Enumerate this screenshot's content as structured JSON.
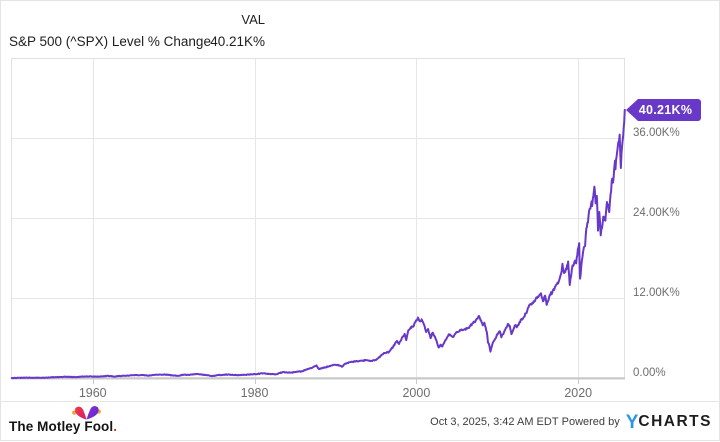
{
  "header": {
    "val_header": "VAL",
    "series_label": "S&P 500 (^SPX) Level % Change",
    "val_value": "40.21K%"
  },
  "chart_data": {
    "type": "line",
    "title": "S&P 500 (^SPX) Level % Change",
    "end_label": "40.21K%",
    "line_color": "#6838c9",
    "grid": true,
    "legend_position": "top-left",
    "y_axis_side": "right",
    "x_range": [
      1949.9,
      2025.78
    ],
    "y_range": [
      0,
      48000
    ],
    "x_ticks": [
      {
        "value": 1960,
        "label": "1960"
      },
      {
        "value": 1980,
        "label": "1980"
      },
      {
        "value": 2000,
        "label": "2000"
      },
      {
        "value": 2020,
        "label": "2020"
      }
    ],
    "y_ticks": [
      {
        "value": 0,
        "label": "0.00%"
      },
      {
        "value": 12000,
        "label": "12.00K%"
      },
      {
        "value": 24000,
        "label": "24.00K%"
      },
      {
        "value": 36000,
        "label": "36.00K%"
      }
    ],
    "series": [
      {
        "name": "S&P 500 (^SPX) Level % Change",
        "units": "percent change since 1950",
        "points": [
          [
            1950.0,
            0
          ],
          [
            1950.5,
            16
          ],
          [
            1951,
            29
          ],
          [
            1951.5,
            35
          ],
          [
            1952,
            44
          ],
          [
            1952.5,
            47
          ],
          [
            1953,
            53
          ],
          [
            1953.7,
            38
          ],
          [
            1954.2,
            62
          ],
          [
            1954.9,
            108
          ],
          [
            1955.5,
            140
          ],
          [
            1956.6,
            181
          ],
          [
            1957.2,
            160
          ],
          [
            1957.8,
            137
          ],
          [
            1958.5,
            180
          ],
          [
            1959.0,
            230
          ],
          [
            1959.6,
            248
          ],
          [
            1960.3,
            220
          ],
          [
            1960.8,
            215
          ],
          [
            1961.9,
            332
          ],
          [
            1962.5,
            227
          ],
          [
            1963.2,
            290
          ],
          [
            1963.9,
            345
          ],
          [
            1965.1,
            425
          ],
          [
            1966.1,
            442
          ],
          [
            1966.8,
            362
          ],
          [
            1967.7,
            472
          ],
          [
            1968.9,
            523
          ],
          [
            1969.6,
            430
          ],
          [
            1970.4,
            330
          ],
          [
            1971.3,
            500
          ],
          [
            1971.8,
            460
          ],
          [
            1972.95,
            610
          ],
          [
            1973.5,
            500
          ],
          [
            1974.0,
            440
          ],
          [
            1974.75,
            274
          ],
          [
            1975.5,
            450
          ],
          [
            1976.7,
            516
          ],
          [
            1977.5,
            460
          ],
          [
            1978.2,
            428
          ],
          [
            1978.7,
            480
          ],
          [
            1979.7,
            550
          ],
          [
            1980.3,
            580
          ],
          [
            1980.9,
            722
          ],
          [
            1981.5,
            650
          ],
          [
            1982.6,
            540
          ],
          [
            1983.5,
            890
          ],
          [
            1984.5,
            800
          ],
          [
            1985.9,
            1030
          ],
          [
            1986.7,
            1400
          ],
          [
            1987.0,
            1460
          ],
          [
            1987.65,
            1880
          ],
          [
            1987.95,
            1350
          ],
          [
            1988.5,
            1520
          ],
          [
            1989.75,
            1960
          ],
          [
            1990.5,
            1900
          ],
          [
            1990.8,
            1676
          ],
          [
            1991.2,
            2150
          ],
          [
            1991.9,
            2420
          ],
          [
            1992.7,
            2500
          ],
          [
            1993.8,
            2680
          ],
          [
            1994.35,
            2580
          ],
          [
            1995.0,
            2700
          ],
          [
            1995.9,
            3610
          ],
          [
            1996.6,
            3900
          ],
          [
            1996.9,
            4340
          ],
          [
            1997.6,
            5560
          ],
          [
            1997.85,
            5100
          ],
          [
            1998.2,
            6000
          ],
          [
            1998.55,
            6610
          ],
          [
            1998.75,
            5680
          ],
          [
            1999.0,
            7150
          ],
          [
            1999.3,
            7600
          ],
          [
            1999.6,
            7700
          ],
          [
            1999.8,
            8300
          ],
          [
            2000.2,
            9065
          ],
          [
            2000.45,
            8500
          ],
          [
            2000.65,
            8800
          ],
          [
            2001.0,
            7850
          ],
          [
            2001.2,
            6900
          ],
          [
            2001.45,
            7350
          ],
          [
            2001.75,
            5980
          ],
          [
            2002.0,
            6800
          ],
          [
            2002.3,
            6180
          ],
          [
            2002.55,
            5300
          ],
          [
            2002.75,
            4560
          ],
          [
            2003.0,
            5000
          ],
          [
            2003.2,
            4720
          ],
          [
            2003.6,
            5700
          ],
          [
            2004.0,
            6560
          ],
          [
            2004.6,
            6200
          ],
          [
            2005.0,
            6900
          ],
          [
            2005.5,
            7150
          ],
          [
            2006.0,
            7350
          ],
          [
            2006.5,
            7500
          ],
          [
            2006.9,
            8180
          ],
          [
            2007.3,
            8500
          ],
          [
            2007.55,
            8900
          ],
          [
            2007.75,
            9290
          ],
          [
            2008.0,
            8630
          ],
          [
            2008.2,
            7900
          ],
          [
            2008.4,
            8300
          ],
          [
            2008.7,
            6900
          ],
          [
            2008.85,
            5300
          ],
          [
            2009.0,
            4950
          ],
          [
            2009.15,
            3958
          ],
          [
            2009.45,
            5300
          ],
          [
            2009.75,
            5900
          ],
          [
            2010.0,
            6590
          ],
          [
            2010.3,
            7000
          ],
          [
            2010.5,
            6100
          ],
          [
            2010.9,
            7100
          ],
          [
            2011.3,
            8100
          ],
          [
            2011.55,
            7800
          ],
          [
            2011.75,
            6580
          ],
          [
            2012.0,
            7300
          ],
          [
            2012.25,
            7950
          ],
          [
            2012.4,
            7600
          ],
          [
            2012.75,
            8400
          ],
          [
            2013.2,
            9000
          ],
          [
            2013.7,
            10100
          ],
          [
            2014.0,
            10990
          ],
          [
            2014.4,
            11200
          ],
          [
            2014.75,
            11900
          ],
          [
            2015.0,
            12200
          ],
          [
            2015.4,
            12700
          ],
          [
            2015.65,
            11500
          ],
          [
            2015.9,
            12350
          ],
          [
            2016.1,
            10970
          ],
          [
            2016.5,
            12500
          ],
          [
            2016.8,
            12850
          ],
          [
            2017.2,
            13800
          ],
          [
            2017.6,
            14500
          ],
          [
            2017.95,
            16000
          ],
          [
            2018.05,
            17140
          ],
          [
            2018.25,
            15740
          ],
          [
            2018.55,
            16300
          ],
          [
            2018.75,
            17480
          ],
          [
            2018.95,
            13950
          ],
          [
            2019.3,
            16900
          ],
          [
            2019.45,
            17000
          ],
          [
            2019.6,
            17600
          ],
          [
            2019.75,
            17200
          ],
          [
            2019.95,
            19300
          ],
          [
            2020.12,
            20220
          ],
          [
            2020.2,
            15500
          ],
          [
            2020.23,
            14900
          ],
          [
            2020.45,
            17600
          ],
          [
            2020.6,
            18900
          ],
          [
            2020.7,
            19600
          ],
          [
            2020.85,
            19800
          ],
          [
            2021.0,
            22440
          ],
          [
            2021.2,
            23300
          ],
          [
            2021.35,
            25100
          ],
          [
            2021.5,
            25400
          ],
          [
            2021.65,
            26500
          ],
          [
            2021.72,
            25800
          ],
          [
            2021.95,
            28180
          ],
          [
            2022.0,
            28700
          ],
          [
            2022.15,
            26200
          ],
          [
            2022.3,
            27300
          ],
          [
            2022.45,
            22100
          ],
          [
            2022.6,
            24900
          ],
          [
            2022.7,
            23300
          ],
          [
            2022.78,
            21400
          ],
          [
            2023.0,
            23000
          ],
          [
            2023.1,
            24200
          ],
          [
            2023.35,
            23600
          ],
          [
            2023.55,
            26400
          ],
          [
            2023.7,
            26000
          ],
          [
            2023.83,
            24900
          ],
          [
            2024.0,
            27600
          ],
          [
            2024.2,
            29900
          ],
          [
            2024.3,
            29300
          ],
          [
            2024.45,
            31500
          ],
          [
            2024.55,
            32600
          ],
          [
            2024.6,
            31300
          ],
          [
            2024.75,
            33300
          ],
          [
            2024.85,
            34300
          ],
          [
            2024.95,
            35300
          ],
          [
            2025.05,
            35600
          ],
          [
            2025.12,
            36500
          ],
          [
            2025.2,
            33500
          ],
          [
            2025.27,
            31500
          ],
          [
            2025.35,
            33800
          ],
          [
            2025.45,
            35200
          ],
          [
            2025.55,
            36300
          ],
          [
            2025.62,
            37600
          ],
          [
            2025.68,
            38300
          ],
          [
            2025.75,
            40210
          ]
        ]
      }
    ]
  },
  "footer": {
    "brand": "The Motley Fool",
    "brand_mark": ".",
    "timestamp": "Oct 3, 2025, 3:42 AM EDT",
    "powered_by": " Powered by",
    "ycharts_y": "Y",
    "ycharts_rest": "CHARTS"
  },
  "colors": {
    "line": "#6838c9",
    "badge": "#6838c9",
    "grid": "#e6e6e6",
    "plot_border": "#e1e1e1",
    "axis": "#c9c9c9",
    "label_gray": "#6e6e6e",
    "ycharts_blue": "#2b96ea",
    "fool_red": "#e02552",
    "fool_purple": "#7a2ed6",
    "fool_gold": "#f2a33a"
  }
}
